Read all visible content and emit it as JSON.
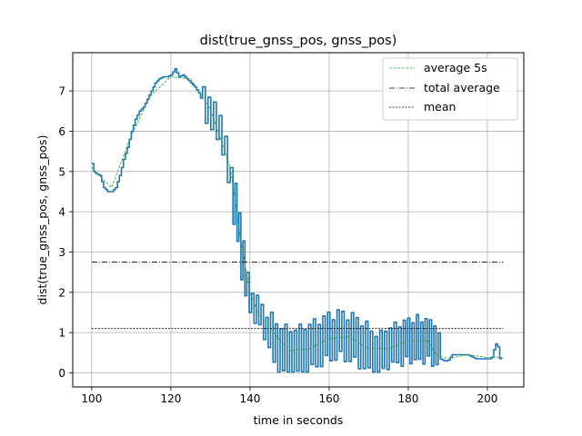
{
  "chart_data": {
    "type": "line",
    "title": "dist(true_gnss_pos, gnss_pos)",
    "xlabel": "time in seconds",
    "ylabel": "dist(true_gnss_pos, gnss_pos)",
    "xlim": [
      95.2,
      209.2
    ],
    "ylim": [
      -0.35,
      7.95
    ],
    "xticks": [
      100,
      120,
      140,
      160,
      180,
      200
    ],
    "yticks": [
      0,
      1,
      2,
      3,
      4,
      5,
      6,
      7
    ],
    "grid": true,
    "legend_position": "top-right",
    "colors": {
      "signal": "#1f77b4",
      "average_5s": "#2ca02c",
      "total_average": "#000000",
      "mean": "#000000",
      "grid": "#b0b0b0"
    },
    "series": [
      {
        "name": "",
        "style": "solid",
        "oscillating_segments": [
          {
            "x": [
              128,
              135
            ],
            "base": 6.6,
            "amplitude": 0.45,
            "step": 0.7
          },
          {
            "x": [
              135,
              139
            ],
            "base": 4.8,
            "amplitude": 0.7,
            "step": 0.5
          },
          {
            "x": [
              139,
              145
            ],
            "base": 1.6,
            "amplitude": 0.4,
            "step": 0.6
          },
          {
            "x": [
              145,
              170
            ],
            "base": 0.7,
            "amplitude": 0.65,
            "step": 0.6
          },
          {
            "x": [
              170,
              178
            ],
            "base": 0.55,
            "amplitude": 0.55,
            "step": 0.6
          },
          {
            "x": [
              178,
              188
            ],
            "base": 0.8,
            "amplitude": 0.6,
            "step": 0.55
          }
        ],
        "x": [
          100,
          100.5,
          101,
          102,
          103,
          104,
          105,
          106,
          107,
          108,
          109,
          110,
          111,
          112,
          113,
          114,
          115,
          116,
          117,
          118,
          119,
          120,
          121,
          122,
          123,
          124,
          125,
          126,
          127,
          128,
          129,
          130,
          131,
          132,
          133,
          134,
          135,
          136,
          137,
          138,
          139,
          140,
          141,
          142,
          143,
          144,
          145,
          146,
          147,
          148,
          149,
          150,
          152,
          154,
          156,
          158,
          160,
          162,
          164,
          166,
          168,
          170,
          172,
          174,
          176,
          178,
          180,
          182,
          184,
          186,
          187,
          187.5,
          188,
          189,
          190,
          191,
          192,
          193,
          194,
          195,
          196,
          197,
          198,
          199,
          200,
          201,
          202,
          202.5,
          203,
          204
        ],
        "y": [
          5.2,
          5.0,
          4.95,
          4.9,
          4.6,
          4.5,
          4.5,
          4.6,
          4.9,
          5.3,
          5.6,
          6.0,
          6.3,
          6.5,
          6.6,
          6.8,
          7.0,
          7.2,
          7.3,
          7.35,
          7.35,
          7.4,
          7.55,
          7.35,
          7.4,
          7.3,
          7.2,
          7.1,
          6.95,
          6.7,
          6.6,
          6.5,
          6.3,
          6.0,
          5.7,
          5.3,
          4.8,
          4.2,
          3.5,
          2.8,
          2.2,
          1.8,
          1.6,
          1.5,
          1.3,
          1.1,
          0.9,
          0.7,
          0.6,
          0.6,
          0.55,
          0.5,
          0.55,
          0.6,
          0.7,
          0.8,
          0.9,
          0.95,
          0.9,
          0.85,
          0.7,
          0.6,
          0.45,
          0.6,
          0.7,
          0.75,
          0.8,
          0.85,
          0.8,
          0.75,
          0.7,
          0.4,
          0.35,
          0.3,
          0.3,
          0.45,
          0.45,
          0.45,
          0.45,
          0.45,
          0.4,
          0.35,
          0.35,
          0.35,
          0.35,
          0.35,
          0.72,
          0.72,
          0.35,
          0.38
        ]
      },
      {
        "name": "average 5s",
        "style": "dashed",
        "note": "",
        "x": [
          100,
          105,
          110,
          115,
          120,
          125,
          130,
          135,
          138,
          140,
          142,
          145,
          150,
          155,
          160,
          165,
          170,
          175,
          180,
          185,
          187,
          190,
          195,
          200,
          204
        ],
        "y": [
          5.1,
          4.6,
          5.9,
          6.9,
          7.35,
          7.3,
          6.55,
          5.1,
          3.1,
          2.0,
          1.5,
          1.1,
          0.55,
          0.6,
          0.85,
          0.9,
          0.6,
          0.6,
          0.8,
          0.8,
          0.45,
          0.35,
          0.45,
          0.38,
          0.38
        ]
      },
      {
        "name": "total average",
        "style": "dashdot",
        "x": [
          100,
          204
        ],
        "y": [
          2.75,
          2.75
        ]
      },
      {
        "name": "mean",
        "style": "dotted",
        "x": [
          100,
          204
        ],
        "y": [
          1.1,
          1.1
        ]
      }
    ]
  }
}
